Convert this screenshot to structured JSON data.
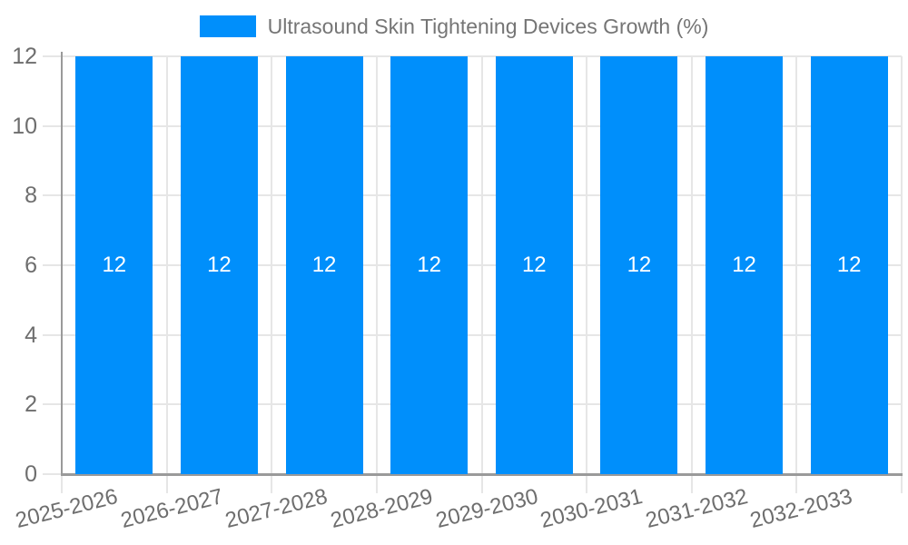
{
  "chart_data": {
    "type": "bar",
    "title": "Ultrasound Skin Tightening Devices Growth (%)",
    "categories": [
      "2025-2026",
      "2026-2027",
      "2027-2028",
      "2028-2029",
      "2029-2030",
      "2030-2031",
      "2031-2032",
      "2032-2033"
    ],
    "series": [
      {
        "name": "Ultrasound Skin Tightening Devices Growth (%)",
        "values": [
          12,
          12,
          12,
          12,
          12,
          12,
          12,
          12
        ]
      }
    ],
    "bar_value_labels": [
      "12",
      "12",
      "12",
      "12",
      "12",
      "12",
      "12",
      "12"
    ],
    "y_tick_labels": [
      "0",
      "2",
      "4",
      "6",
      "8",
      "10",
      "12"
    ],
    "yticks": [
      0,
      2,
      4,
      6,
      8,
      10,
      12
    ],
    "ylim": [
      0,
      12
    ],
    "xlabel": "",
    "ylabel": "",
    "grid": true,
    "legend_position": "top-center",
    "x_tick_rotation_deg": -14,
    "colors": {
      "bar": "#008FFB",
      "bar_label": "#FFFFFF",
      "tick_text": "#6E6E6E",
      "legend_text": "#757575",
      "grid_line": "#E6E6E6",
      "axis_line": "#9A9A9A",
      "background": "#FFFFFF"
    }
  }
}
